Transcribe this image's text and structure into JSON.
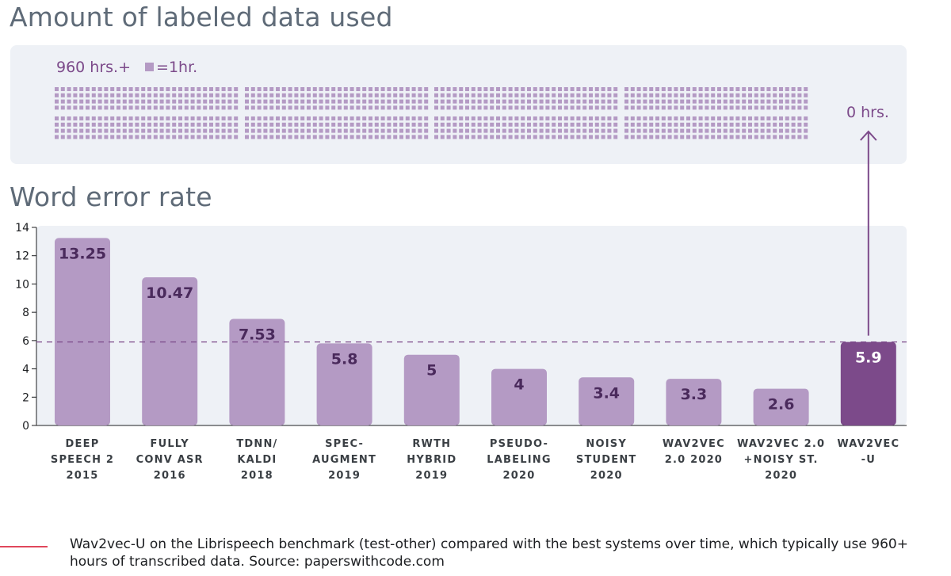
{
  "titles": {
    "labeled_data": "Amount of labeled data used",
    "word_error_rate": "Word error rate"
  },
  "hours_panel": {
    "legend_hours": "960 hrs.+",
    "legend_unit": "=1hr.",
    "zero_label": "0 hrs.",
    "square_count": 960,
    "square_color": "#b49ac4"
  },
  "chart_data": {
    "type": "bar",
    "title": "Word error rate",
    "xlabel": "",
    "ylabel": "",
    "ylim": [
      0,
      14
    ],
    "yticks": [
      0,
      2,
      4,
      6,
      8,
      10,
      12,
      14
    ],
    "reference_line": 5.9,
    "categories": [
      [
        "DEEP",
        "SPEECH 2",
        "2015"
      ],
      [
        "FULLY",
        "CONV ASR",
        "2016"
      ],
      [
        "TDNN/",
        "KALDI",
        "2018"
      ],
      [
        "SPEC-",
        "AUGMENT",
        "2019"
      ],
      [
        "RWTH",
        "HYBRID",
        "2019"
      ],
      [
        "PSEUDO-",
        "LABELING",
        "2020"
      ],
      [
        "NOISY",
        "STUDENT",
        "2020"
      ],
      [
        "WAV2VEC",
        "2.0 2020"
      ],
      [
        "WAV2VEC 2.0",
        "+NOISY ST.",
        "2020"
      ],
      [
        "WAV2VEC",
        "-U"
      ]
    ],
    "values": [
      13.25,
      10.47,
      7.53,
      5.8,
      5,
      4,
      3.4,
      3.3,
      2.6,
      5.9
    ],
    "value_labels": [
      "13.25",
      "10.47",
      "7.53",
      "5.8",
      "5",
      "4",
      "3.4",
      "3.3",
      "2.6",
      "5.9"
    ],
    "colors": {
      "bar": "#b49ac4",
      "highlight_bar": "#7c4a8a",
      "label_dark": "#4a2a5c",
      "label_light": "#ffffff",
      "background": "#eef1f6",
      "reference_line": "#7c4a8a",
      "category_text": "#3a3f44",
      "axis_text": "#1c1e21"
    },
    "highlight_index": 9
  },
  "caption": {
    "text": "Wav2vec-U on the Librispeech benchmark (test-other) compared with the best systems over time, which typically use 960+ hours of transcribed data. Source: paperswithcode.com"
  }
}
